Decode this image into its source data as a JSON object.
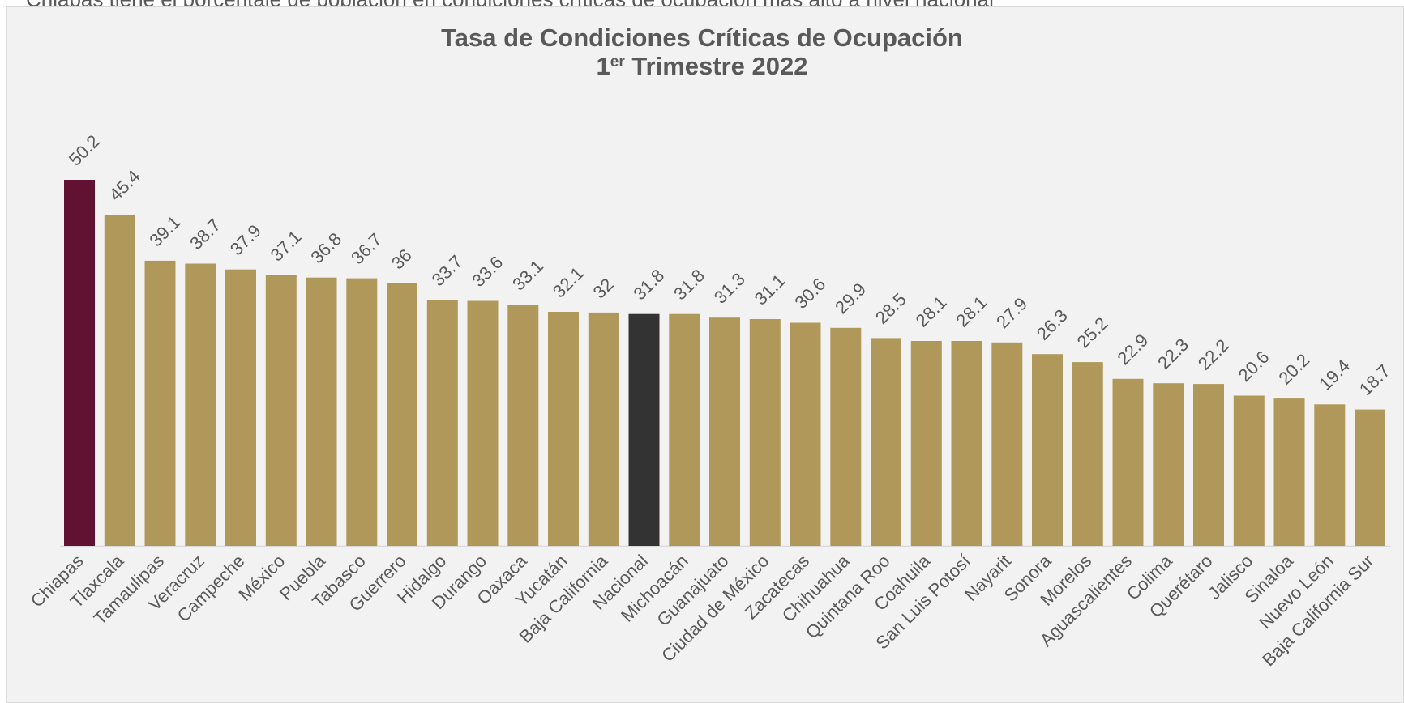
{
  "header": {
    "clipped_sentence": "Chiapas tiene el porcentaje de población en condiciones críticas de ocupación más alto a nivel nacional"
  },
  "chart_data": {
    "type": "bar",
    "title_line1": "Tasa de Condiciones Críticas de Ocupación",
    "title_line2_prefix": "1",
    "title_line2_sup": "er",
    "title_line2_suffix": " Trimestre 2022",
    "xlabel": "",
    "ylabel": "",
    "ylim": [
      0,
      50.2
    ],
    "grid": false,
    "legend": "none",
    "categories": [
      "Chiapas",
      "Tlaxcala",
      "Tamaulipas",
      "Veracruz",
      "Campeche",
      "México",
      "Puebla",
      "Tabasco",
      "Guerrero",
      "Hidalgo",
      "Durango",
      "Oaxaca",
      "Yucatán",
      "Baja California",
      "Nacional",
      "Michoacán",
      "Guanajuato",
      "Ciudad de México",
      "Zacatecas",
      "Chihuahua",
      "Quintana Roo",
      "Coahuila",
      "San Luis Potosí",
      "Nayarit",
      "Sonora",
      "Morelos",
      "Aguascalientes",
      "Colima",
      "Querétaro",
      "Jalisco",
      "Sinaloa",
      "Nuevo León",
      "Baja California Sur"
    ],
    "values": [
      50.2,
      45.4,
      39.1,
      38.7,
      37.9,
      37.1,
      36.8,
      36.7,
      36,
      33.7,
      33.6,
      33.1,
      32.1,
      32,
      31.8,
      31.8,
      31.3,
      31.1,
      30.6,
      29.9,
      28.5,
      28.1,
      28.1,
      27.9,
      26.3,
      25.2,
      22.9,
      22.3,
      22.2,
      20.6,
      20.2,
      19.4,
      18.7
    ],
    "value_labels": [
      "50.2",
      "45.4",
      "39.1",
      "38.7",
      "37.9",
      "37.1",
      "36.8",
      "36.7",
      "36",
      "33.7",
      "33.6",
      "33.1",
      "32.1",
      "32",
      "31.8",
      "31.8",
      "31.3",
      "31.1",
      "30.6",
      "29.9",
      "28.5",
      "28.1",
      "28.1",
      "27.9",
      "26.3",
      "25.2",
      "22.9",
      "22.3",
      "22.2",
      "20.6",
      "20.2",
      "19.4",
      "18.7"
    ],
    "colors": {
      "default": "#b0985a",
      "highlight": "#611232",
      "national": "#333333",
      "baseline": "#d9d9d9",
      "text": "#595959"
    },
    "highlight_category": "Chiapas",
    "national_category": "Nacional"
  }
}
